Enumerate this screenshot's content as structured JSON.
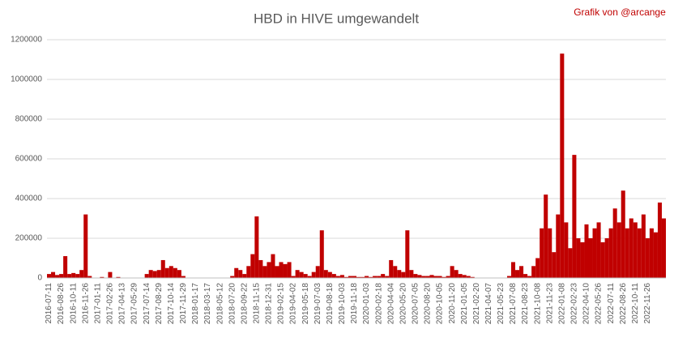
{
  "chart_data": {
    "type": "bar",
    "title": "HBD in HIVE umgewandelt",
    "annotation": "Grafik von @arcange",
    "categories": [
      "2016-07-11",
      null,
      null,
      "2016-08-26",
      null,
      null,
      "2016-10-11",
      null,
      null,
      "2016-11-26",
      null,
      null,
      "2017-01-11",
      null,
      null,
      "2017-02-26",
      null,
      null,
      "2017-04-13",
      null,
      null,
      "2017-05-29",
      null,
      null,
      "2017-07-14",
      null,
      null,
      "2017-08-29",
      null,
      null,
      "2017-10-14",
      null,
      null,
      "2017-11-29",
      null,
      null,
      "2018-01-17",
      null,
      null,
      "2018-03-17",
      null,
      null,
      "2018-05-12",
      null,
      null,
      "2018-07-20",
      null,
      null,
      "2018-09-22",
      null,
      null,
      "2018-11-15",
      null,
      null,
      "2018-12-31",
      null,
      null,
      "2019-02-15",
      null,
      null,
      "2019-04-02",
      null,
      null,
      "2019-05-18",
      null,
      null,
      "2019-07-03",
      null,
      null,
      "2019-08-18",
      null,
      null,
      "2019-10-03",
      null,
      null,
      "2019-11-18",
      null,
      null,
      "2020-01-03",
      null,
      null,
      "2020-02-18",
      null,
      null,
      "2020-04-04",
      null,
      null,
      "2020-05-20",
      null,
      null,
      "2020-07-05",
      null,
      null,
      "2020-08-20",
      null,
      null,
      "2020-10-05",
      null,
      null,
      "2020-11-20",
      null,
      null,
      "2021-01-05",
      null,
      null,
      "2021-02-20",
      null,
      null,
      "2021-04-07",
      null,
      null,
      "2021-05-23",
      null,
      null,
      "2021-07-08",
      null,
      null,
      "2021-08-23",
      null,
      null,
      "2021-10-08",
      null,
      null,
      "2021-11-23",
      null,
      null,
      "2022-01-08",
      null,
      null,
      "2022-02-23",
      null,
      null,
      "2022-04-10",
      null,
      null,
      "2022-05-26",
      null,
      null,
      "2022-07-11",
      null,
      null,
      "2022-08-26",
      null,
      null,
      "2022-10-11",
      null,
      null,
      "2022-11-26",
      null,
      null,
      null,
      null
    ],
    "values": [
      20000,
      30000,
      15000,
      20000,
      110000,
      20000,
      25000,
      20000,
      40000,
      320000,
      10000,
      0,
      0,
      5000,
      0,
      30000,
      0,
      5000,
      0,
      0,
      0,
      0,
      0,
      0,
      20000,
      40000,
      35000,
      40000,
      90000,
      50000,
      60000,
      50000,
      40000,
      10000,
      0,
      0,
      0,
      0,
      0,
      0,
      0,
      0,
      0,
      0,
      0,
      10000,
      50000,
      40000,
      20000,
      60000,
      120000,
      310000,
      90000,
      60000,
      80000,
      120000,
      60000,
      80000,
      70000,
      80000,
      10000,
      40000,
      30000,
      20000,
      10000,
      30000,
      60000,
      240000,
      40000,
      30000,
      20000,
      10000,
      15000,
      5000,
      10000,
      10000,
      5000,
      5000,
      10000,
      5000,
      10000,
      10000,
      20000,
      10000,
      90000,
      60000,
      40000,
      30000,
      240000,
      40000,
      20000,
      15000,
      10000,
      10000,
      15000,
      10000,
      10000,
      5000,
      10000,
      60000,
      40000,
      20000,
      15000,
      10000,
      5000,
      0,
      0,
      0,
      0,
      0,
      0,
      0,
      0,
      10000,
      80000,
      40000,
      60000,
      20000,
      10000,
      60000,
      100000,
      250000,
      420000,
      250000,
      130000,
      320000,
      1130000,
      280000,
      150000,
      620000,
      200000,
      180000,
      270000,
      200000,
      250000,
      280000,
      180000,
      200000,
      250000,
      350000,
      280000,
      440000,
      250000,
      300000,
      280000,
      250000,
      320000,
      200000,
      250000,
      230000,
      380000,
      300000
    ],
    "color": "#c00000",
    "ylim": [
      0,
      1200000
    ],
    "yticks": [
      0,
      200000,
      400000,
      600000,
      800000,
      1000000,
      1200000
    ],
    "grid": true
  }
}
